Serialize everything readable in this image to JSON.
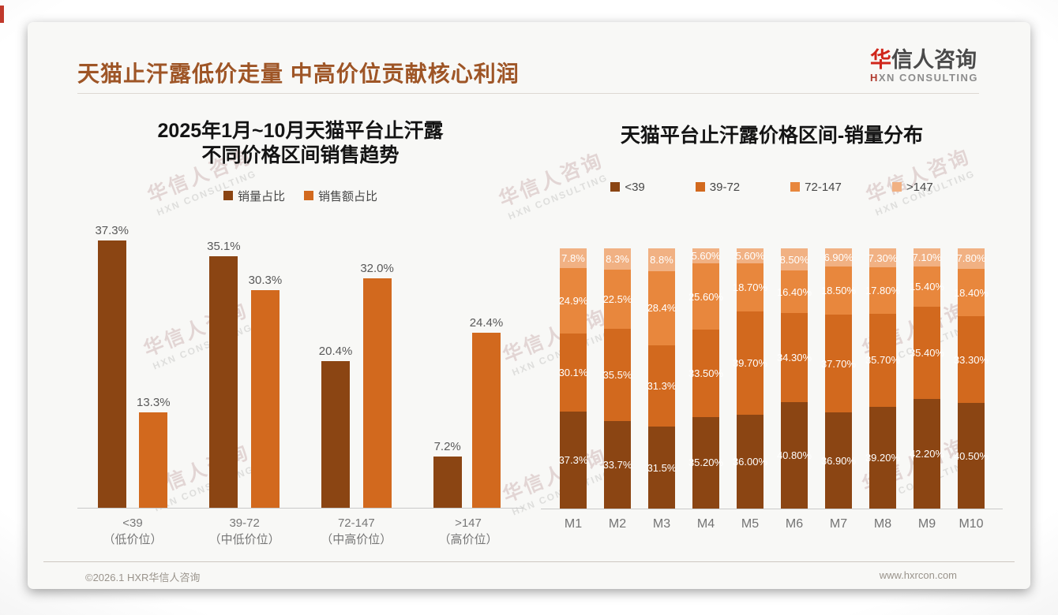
{
  "header": {
    "title": "天猫止汗露低价走量 中高价位贡献核心利润",
    "logo": {
      "cn_accent": "华",
      "cn_rest": "信人咨询",
      "en_accent": "H",
      "en_rest": "XN CONSULTING"
    }
  },
  "watermark": {
    "cn": "华信人咨询",
    "en": "HXN CONSULTING"
  },
  "footer": {
    "left": "©2026.1 HXR华信人咨询",
    "right": "www.hxrcon.com"
  },
  "colors": {
    "title_accent": "#9E5526",
    "logo_red": "#D0261B",
    "volume_brown": "#8B4513",
    "revenue_orange": "#D2691E",
    "band_72_147": "#E8873D",
    "band_gt147": "#F1B183"
  },
  "chart_data": [
    {
      "type": "bar",
      "title_lines": [
        "2025年1月~10月天猫平台止汗露",
        "不同价格区间销售趋势"
      ],
      "categories": [
        "<39",
        "39-72",
        "72-147",
        ">147"
      ],
      "category_notes": [
        "（低价位）",
        "（中低价位）",
        "（中高价位）",
        "（高价位）"
      ],
      "unit": "%",
      "ylim": [
        0,
        40
      ],
      "grid": false,
      "legend_position": "top",
      "series": [
        {
          "name": "销量占比",
          "color": "#8B4513",
          "values": [
            37.3,
            35.1,
            20.4,
            7.2
          ],
          "labels": [
            "37.3%",
            "35.1%",
            "20.4%",
            "7.2%"
          ]
        },
        {
          "name": "销售额占比",
          "color": "#D2691E",
          "values": [
            13.3,
            30.3,
            32.0,
            24.4
          ],
          "labels": [
            "13.3%",
            "30.3%",
            "32.0%",
            "24.4%"
          ]
        }
      ]
    },
    {
      "type": "stacked-bar",
      "title": "天猫平台止汗露价格区间-销量分布",
      "categories": [
        "M1",
        "M2",
        "M3",
        "M4",
        "M5",
        "M6",
        "M7",
        "M8",
        "M9",
        "M10"
      ],
      "unit": "%",
      "ylim": [
        0,
        100
      ],
      "grid": false,
      "legend_position": "top",
      "series": [
        {
          "name": "<39",
          "color": "#8B4513",
          "values": [
            37.3,
            33.7,
            31.5,
            35.2,
            36.0,
            40.8,
            36.9,
            39.2,
            42.2,
            40.5
          ],
          "labels": [
            "37.3%",
            "33.7%",
            "31.5%",
            "35.20%",
            "36.00%",
            "40.80%",
            "36.90%",
            "39.20%",
            "42.20%",
            "40.50%"
          ]
        },
        {
          "name": "39-72",
          "color": "#D2691E",
          "values": [
            30.1,
            35.5,
            31.3,
            33.5,
            39.7,
            34.3,
            37.7,
            35.7,
            35.4,
            33.3
          ],
          "labels": [
            "30.1%",
            "35.5%",
            "31.3%",
            "33.50%",
            "39.70%",
            "34.30%",
            "37.70%",
            "35.70%",
            "35.40%",
            "33.30%"
          ]
        },
        {
          "name": "72-147",
          "color": "#E8873D",
          "values": [
            24.9,
            22.5,
            28.4,
            25.6,
            18.7,
            16.4,
            18.5,
            17.8,
            15.4,
            18.4
          ],
          "labels": [
            "24.9%",
            "22.5%",
            "28.4%",
            "25.60%",
            "18.70%",
            "16.40%",
            "18.50%",
            "17.80%",
            "15.40%",
            "18.40%"
          ]
        },
        {
          "name": ">147",
          "color": "#F1B183",
          "values": [
            7.8,
            8.3,
            8.8,
            5.6,
            5.6,
            8.5,
            6.9,
            7.3,
            7.1,
            7.8
          ],
          "labels": [
            "7.8%",
            "8.3%",
            "8.8%",
            "5.60%",
            "5.60%",
            "8.50%",
            "6.90%",
            "7.30%",
            "7.10%",
            "7.80%"
          ]
        }
      ]
    }
  ]
}
